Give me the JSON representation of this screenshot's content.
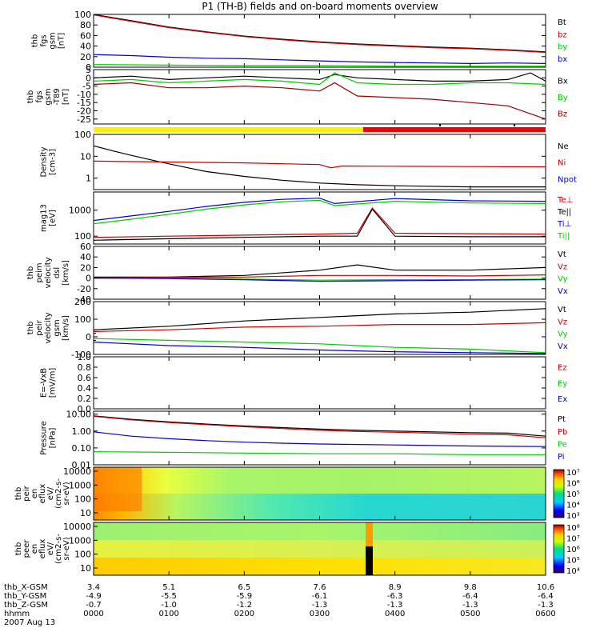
{
  "chart_data": {
    "type": "line",
    "title": "P1 (TH-B) fields and on-board moments overview",
    "date": "2007 Aug 13",
    "time": {
      "range_hours": [
        0,
        6
      ],
      "tick_labels": [
        "0000",
        "0100",
        "0200",
        "0300",
        "0400",
        "0500",
        "0600"
      ]
    },
    "ephemeris": [
      {
        "label": "thb_X-GSM",
        "values": [
          "3.4",
          "5.1",
          "6.5",
          "7.6",
          "8.9",
          "9.8",
          "10.6"
        ]
      },
      {
        "label": "thb_Y-GSM",
        "values": [
          "-4.9",
          "-5.5",
          "-5.9",
          "-6.1",
          "-6.3",
          "-6.4",
          "-6.4"
        ]
      },
      {
        "label": "thb_Z-GSM",
        "values": [
          "-0.7",
          "-1.0",
          "-1.2",
          "-1.3",
          "-1.3",
          "-1.3",
          "-1.3"
        ]
      },
      {
        "label": "hhmm",
        "values": []
      }
    ],
    "panels": [
      {
        "id": "fgs",
        "ylabel": [
          "thb",
          "fgs",
          "gsm",
          "[nT]"
        ],
        "scale": "linear",
        "ylim": [
          0,
          100
        ],
        "ticks": [
          0,
          20,
          40,
          60,
          80,
          100
        ],
        "series": [
          {
            "name": "Bt",
            "color": "#000000",
            "x": [
              0,
              0.5,
              1,
              1.5,
              2,
              2.5,
              3,
              3.5,
              4,
              4.5,
              5,
              5.5,
              6
            ],
            "y": [
              100,
              88,
              76,
              67,
              59,
              53,
              48,
              44,
              41,
              38,
              36,
              33,
              29
            ]
          },
          {
            "name": "bz",
            "color": "#cc0000",
            "x": [
              0,
              0.5,
              1,
              1.5,
              2,
              2.5,
              3,
              3.5,
              4,
              4.5,
              5,
              5.5,
              6
            ],
            "y": [
              99,
              87,
              75,
              66,
              58,
              52,
              47,
              43,
              40,
              37,
              35,
              32,
              28
            ]
          },
          {
            "name": "by",
            "color": "#00cc00",
            "x": [
              0,
              1,
              2,
              3,
              4,
              5,
              6
            ],
            "y": [
              5,
              4,
              3,
              3,
              2,
              2,
              2
            ]
          },
          {
            "name": "bx",
            "color": "#0000cc",
            "x": [
              0,
              0.5,
              1,
              1.5,
              2,
              2.5,
              3,
              3.5,
              4,
              4.5,
              5,
              5.5,
              6
            ],
            "y": [
              24,
              22,
              19,
              17,
              16,
              14,
              12,
              10,
              9,
              8,
              7,
              8,
              7
            ]
          }
        ]
      },
      {
        "id": "fgs-db",
        "ylabel": [
          "thb",
          "fgs",
          "gsm",
          "-T89",
          "[nT]"
        ],
        "scale": "linear",
        "ylim": [
          -28,
          5
        ],
        "ticks": [
          -25,
          -20,
          -15,
          -10,
          -5,
          0,
          5
        ],
        "series": [
          {
            "name": "Bx",
            "color": "#000000",
            "x": [
              0,
              0.5,
              1,
              1.5,
              2,
              2.5,
              3,
              3.2,
              3.5,
              4,
              4.5,
              5,
              5.5,
              5.8,
              6
            ],
            "y": [
              0,
              1,
              -1,
              0,
              1,
              0,
              -1,
              2,
              0,
              -1,
              -2,
              -2,
              -1,
              3,
              -2
            ]
          },
          {
            "name": "By",
            "color": "#00cc00",
            "x": [
              0,
              0.5,
              1,
              1.5,
              2,
              2.5,
              3,
              3.2,
              3.5,
              4,
              4.5,
              5,
              5.5,
              6
            ],
            "y": [
              -2,
              -1,
              -3,
              -2,
              -1,
              -2,
              -4,
              3,
              -3,
              -4,
              -4,
              -3,
              -3,
              -4
            ]
          },
          {
            "name": "Bz",
            "color": "#990000",
            "x": [
              0,
              0.5,
              1,
              1.5,
              2,
              2.5,
              3,
              3.2,
              3.5,
              4,
              4.5,
              5,
              5.5,
              6
            ],
            "y": [
              -4,
              -3,
              -6,
              -6,
              -5,
              -6,
              -8,
              -3,
              -11,
              -12,
              -13,
              -15,
              -17,
              -25
            ]
          }
        ]
      },
      {
        "id": "density",
        "ylabel": [
          "Density",
          "[cm-3]"
        ],
        "scale": "log",
        "ylim": [
          0.3,
          100
        ],
        "ticks": [
          1,
          10,
          100
        ],
        "tick_labels": [
          "1",
          "10",
          "100"
        ],
        "series": [
          {
            "name": "Ne",
            "color": "#000000",
            "x": [
              0,
              0.25,
              0.5,
              0.75,
              1,
              1.25,
              1.5,
              2,
              2.5,
              3,
              3.5,
              4,
              5,
              6
            ],
            "y": [
              30,
              18,
              11,
              7,
              4.5,
              3,
              2,
              1.2,
              0.8,
              0.6,
              0.5,
              0.45,
              0.4,
              0.4
            ]
          },
          {
            "name": "Ni",
            "color": "#cc0000",
            "x": [
              0,
              1,
              2,
              3,
              3.15,
              3.3,
              4,
              5,
              6
            ],
            "y": [
              6,
              5.5,
              5,
              4.2,
              3,
              3.6,
              3.5,
              3.4,
              3.3
            ]
          },
          {
            "name": "Npot",
            "color": "#0000cc",
            "x": [],
            "y": []
          }
        ]
      },
      {
        "id": "temp",
        "ylabel": [
          "mag13",
          "[eV]"
        ],
        "scale": "log",
        "ylim": [
          50,
          5000
        ],
        "ticks": [
          100,
          1000
        ],
        "tick_labels": [
          "100",
          "1000"
        ],
        "series": [
          {
            "name": "Te⊥",
            "color": "#cc0000",
            "x": [
              0,
              1,
              2,
              3,
              3.5,
              3.7,
              4,
              5,
              6
            ],
            "y": [
              90,
              100,
              110,
              120,
              130,
              1200,
              130,
              125,
              120
            ]
          },
          {
            "name": "Te||",
            "color": "#000000",
            "x": [
              0,
              1,
              2,
              3,
              3.5,
              3.7,
              4,
              5,
              6
            ],
            "y": [
              70,
              80,
              90,
              100,
              100,
              1100,
              100,
              95,
              95
            ]
          },
          {
            "name": "Ti⊥",
            "color": "#0000cc",
            "x": [
              0,
              0.5,
              1,
              1.5,
              2,
              2.5,
              3,
              3.2,
              4,
              5,
              6
            ],
            "y": [
              400,
              600,
              900,
              1400,
              2000,
              2600,
              2900,
              1800,
              2800,
              2300,
              2200
            ]
          },
          {
            "name": "Ti||",
            "color": "#00cc00",
            "x": [
              0,
              0.5,
              1,
              1.5,
              2,
              2.5,
              3,
              3.2,
              4,
              5,
              6
            ],
            "y": [
              300,
              450,
              700,
              1100,
              1600,
              2100,
              2400,
              1500,
              2200,
              1900,
              1800
            ]
          }
        ]
      },
      {
        "id": "peim",
        "ylabel": [
          "thb",
          "peim",
          "velocity",
          "dsl",
          "[km/s]"
        ],
        "scale": "linear",
        "ylim": [
          -40,
          60
        ],
        "ticks": [
          -40,
          -20,
          0,
          20,
          40,
          60
        ],
        "series": [
          {
            "name": "Vt",
            "color": "#000000",
            "x": [
              0,
              1,
              2,
              3,
              3.5,
              4,
              5,
              6
            ],
            "y": [
              2,
              2,
              5,
              15,
              25,
              15,
              15,
              20
            ]
          },
          {
            "name": "Vz",
            "color": "#cc0000",
            "x": [
              0,
              1,
              2,
              3,
              4,
              5,
              6
            ],
            "y": [
              0,
              1,
              2,
              5,
              5,
              4,
              6
            ]
          },
          {
            "name": "Vy",
            "color": "#00cc00",
            "x": [
              0,
              1,
              2,
              3,
              4,
              5,
              6
            ],
            "y": [
              0,
              0,
              -2,
              -4,
              -3,
              -3,
              -2
            ]
          },
          {
            "name": "Vx",
            "color": "#0000cc",
            "x": [
              0,
              1,
              2,
              3,
              4,
              5,
              6
            ],
            "y": [
              0,
              -1,
              -3,
              -6,
              -5,
              -4,
              -3
            ]
          }
        ]
      },
      {
        "id": "peir",
        "ylabel": [
          "thb",
          "peir",
          "velocity",
          "gsm",
          "[km/s]"
        ],
        "scale": "linear",
        "ylim": [
          -100,
          200
        ],
        "ticks": [
          -100,
          0,
          100,
          200
        ],
        "minor_ticks": [
          -20,
          20,
          30
        ],
        "series": [
          {
            "name": "Vt",
            "color": "#000000",
            "x": [
              0,
              1,
              2,
              3,
              3.5,
              4,
              5,
              6
            ],
            "y": [
              40,
              60,
              90,
              110,
              120,
              130,
              140,
              160
            ]
          },
          {
            "name": "Vz",
            "color": "#cc0000",
            "x": [
              0,
              1,
              2,
              3,
              3.5,
              4,
              5,
              6
            ],
            "y": [
              30,
              40,
              55,
              60,
              65,
              70,
              70,
              80
            ]
          },
          {
            "name": "Vy",
            "color": "#00cc00",
            "x": [
              0,
              1,
              2,
              3,
              3.5,
              4,
              5,
              6
            ],
            "y": [
              -10,
              -20,
              -30,
              -40,
              -50,
              -60,
              -70,
              -90
            ]
          },
          {
            "name": "Vx",
            "color": "#0000cc",
            "x": [
              0,
              1,
              2,
              3,
              3.5,
              4,
              5,
              6
            ],
            "y": [
              -30,
              -50,
              -60,
              -75,
              -80,
              -85,
              -90,
              -95
            ]
          }
        ]
      },
      {
        "id": "efield",
        "ylabel": [
          "E=-VxB",
          "[mV/m]"
        ],
        "scale": "linear",
        "ylim": [
          0,
          1
        ],
        "ticks": [
          0,
          0.2,
          0.4,
          0.6,
          0.8,
          1.0
        ],
        "tick_labels": [
          "0.0",
          "0.2",
          "0.4",
          "0.6",
          "0.8",
          "1.0"
        ],
        "series": [
          {
            "name": "Ez",
            "color": "#cc0000",
            "x": [],
            "y": []
          },
          {
            "name": "Ey",
            "color": "#00cc00",
            "x": [],
            "y": []
          },
          {
            "name": "Ex",
            "color": "#0000cc",
            "x": [],
            "y": []
          }
        ]
      },
      {
        "id": "pressure",
        "ylabel": [
          "Pressure",
          "[nPa]"
        ],
        "scale": "log",
        "ylim": [
          0.01,
          15
        ],
        "ticks": [
          0.01,
          0.1,
          1,
          10
        ],
        "tick_labels": [
          "0.01",
          "0.10",
          "1.00",
          "10.00"
        ],
        "series": [
          {
            "name": "Pt",
            "color": "#000000",
            "x": [
              0,
              0.5,
              1,
              1.5,
              2,
              2.5,
              3,
              3.5,
              4,
              4.5,
              5,
              5.5,
              6
            ],
            "y": [
              8,
              5,
              3.5,
              2.6,
              2.0,
              1.6,
              1.3,
              1.1,
              1.0,
              0.9,
              0.8,
              0.75,
              0.5
            ]
          },
          {
            "name": "Pb",
            "color": "#cc0000",
            "x": [
              0,
              0.5,
              1,
              1.5,
              2,
              2.5,
              3,
              3.5,
              4,
              4.5,
              5,
              5.5,
              6
            ],
            "y": [
              7.5,
              4.6,
              3.2,
              2.4,
              1.8,
              1.4,
              1.1,
              0.95,
              0.85,
              0.75,
              0.65,
              0.6,
              0.4
            ]
          },
          {
            "name": "Pe",
            "color": "#00cc00",
            "x": [
              0,
              1,
              2,
              3,
              4,
              5,
              6
            ],
            "y": [
              0.06,
              0.055,
              0.05,
              0.045,
              0.045,
              0.04,
              0.04
            ]
          },
          {
            "name": "Pi",
            "color": "#0000cc",
            "x": [
              0,
              0.5,
              1,
              1.5,
              2,
              2.5,
              3,
              4,
              5,
              6
            ],
            "y": [
              0.9,
              0.5,
              0.35,
              0.27,
              0.22,
              0.19,
              0.17,
              0.15,
              0.13,
              0.12
            ]
          }
        ]
      }
    ],
    "spectrograms": [
      {
        "id": "peir-en",
        "ylabel": [
          "thb",
          "peir",
          "en",
          "eflux",
          "eV/",
          "(cm2-s-",
          "sr-eV)"
        ],
        "ytick_labels": [
          "10",
          "100",
          "1000",
          "10000"
        ],
        "colorbar": {
          "min_exp": 3,
          "max_exp": 7,
          "labels": [
            "10³",
            "10⁴",
            "10⁵",
            "10⁶",
            "10⁷"
          ]
        }
      },
      {
        "id": "peer-en",
        "ylabel": [
          "thb",
          "peer",
          "en",
          "eflux",
          "eV/",
          "(cm2-s-",
          "sr-eV)"
        ],
        "ytick_labels": [
          "10",
          "100",
          "1000",
          "10000"
        ],
        "colorbar": {
          "min_exp": 4,
          "max_exp": 8,
          "labels": [
            "10⁴",
            "10⁵",
            "10⁶",
            "10⁷",
            "10⁸"
          ]
        }
      }
    ]
  }
}
